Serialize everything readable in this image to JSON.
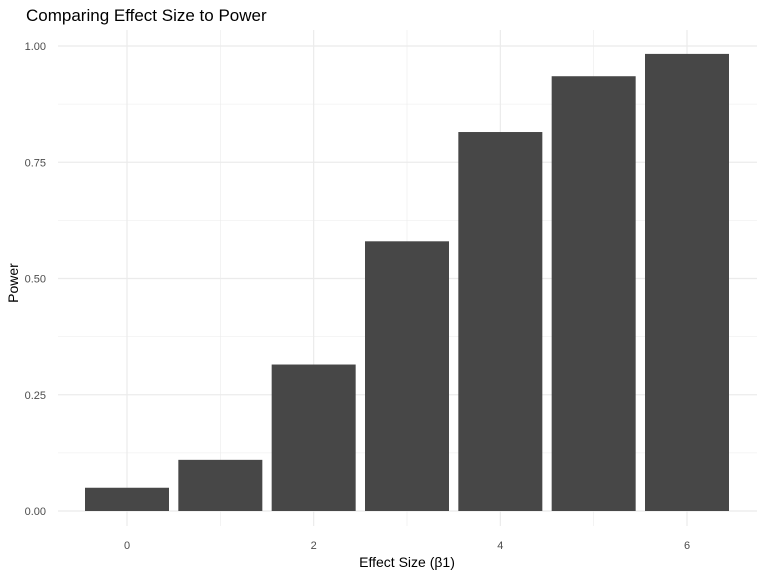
{
  "chart_data": {
    "type": "bar",
    "title": "Comparing Effect Size to Power",
    "xlabel": "Effect Size (β1)",
    "ylabel": "Power",
    "categories": [
      0,
      1,
      2,
      3,
      4,
      5,
      6
    ],
    "values": [
      0.05,
      0.11,
      0.315,
      0.58,
      0.815,
      0.935,
      0.983
    ],
    "xlim": [
      -0.5,
      6.5
    ],
    "ylim": [
      0,
      1
    ],
    "x_ticks": [
      "0",
      "2",
      "4",
      "6"
    ],
    "x_tick_values": [
      0,
      2,
      4,
      6
    ],
    "y_ticks": [
      "0.00",
      "0.25",
      "0.50",
      "0.75",
      "1.00"
    ],
    "y_tick_values": [
      0,
      0.25,
      0.5,
      0.75,
      1.0
    ],
    "grid": true,
    "bar_color": "#474747",
    "grid_color": "#ebebeb"
  }
}
